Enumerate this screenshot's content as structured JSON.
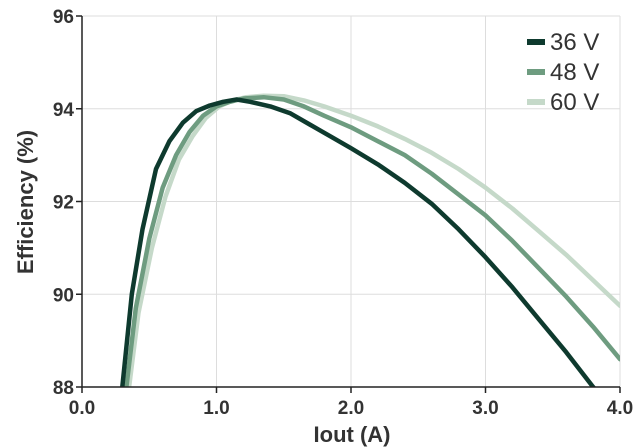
{
  "chart_data": {
    "type": "line",
    "xlabel": "Iout (A)",
    "ylabel": "Efficiency (%)",
    "xlim": [
      0,
      4.0
    ],
    "ylim": [
      88,
      96
    ],
    "xticks": [
      "0.0",
      "1.0",
      "2.0",
      "3.0",
      "4.0"
    ],
    "yticks": [
      "88",
      "90",
      "92",
      "94",
      "96"
    ],
    "grid": true,
    "legend": "top-right",
    "series": [
      {
        "name": "36 V",
        "color": "#0e3a2e",
        "x": [
          0.3,
          0.37,
          0.45,
          0.55,
          0.65,
          0.75,
          0.85,
          0.95,
          1.05,
          1.15,
          1.25,
          1.4,
          1.55,
          1.7,
          1.85,
          2.0,
          2.2,
          2.4,
          2.6,
          2.8,
          3.0,
          3.2,
          3.4,
          3.6,
          3.8,
          3.92
        ],
        "values": [
          88.0,
          90.0,
          91.4,
          92.7,
          93.3,
          93.7,
          93.95,
          94.07,
          94.15,
          94.2,
          94.15,
          94.05,
          93.9,
          93.65,
          93.4,
          93.15,
          92.8,
          92.4,
          91.95,
          91.4,
          90.8,
          90.15,
          89.45,
          88.75,
          88.0,
          87.6
        ]
      },
      {
        "name": "48 V",
        "color": "#6e9c80",
        "x": [
          0.33,
          0.4,
          0.5,
          0.6,
          0.7,
          0.8,
          0.9,
          1.0,
          1.1,
          1.2,
          1.35,
          1.5,
          1.65,
          1.8,
          2.0,
          2.2,
          2.4,
          2.6,
          2.8,
          3.0,
          3.2,
          3.4,
          3.6,
          3.8,
          4.0
        ],
        "values": [
          88.0,
          89.7,
          91.2,
          92.3,
          93.0,
          93.5,
          93.85,
          94.05,
          94.15,
          94.22,
          94.25,
          94.2,
          94.05,
          93.85,
          93.6,
          93.3,
          93.0,
          92.6,
          92.15,
          91.7,
          91.15,
          90.55,
          89.95,
          89.3,
          88.6
        ]
      },
      {
        "name": "60 V",
        "color": "#c5d9c9",
        "x": [
          0.35,
          0.42,
          0.52,
          0.62,
          0.72,
          0.82,
          0.92,
          1.02,
          1.12,
          1.22,
          1.35,
          1.5,
          1.65,
          1.8,
          2.0,
          2.2,
          2.4,
          2.6,
          2.8,
          3.0,
          3.2,
          3.4,
          3.6,
          3.8,
          4.0
        ],
        "values": [
          88.0,
          89.6,
          91.0,
          92.1,
          92.9,
          93.4,
          93.8,
          94.05,
          94.18,
          94.25,
          94.28,
          94.27,
          94.18,
          94.05,
          93.85,
          93.62,
          93.35,
          93.05,
          92.7,
          92.3,
          91.85,
          91.35,
          90.85,
          90.3,
          89.75
        ]
      }
    ]
  }
}
